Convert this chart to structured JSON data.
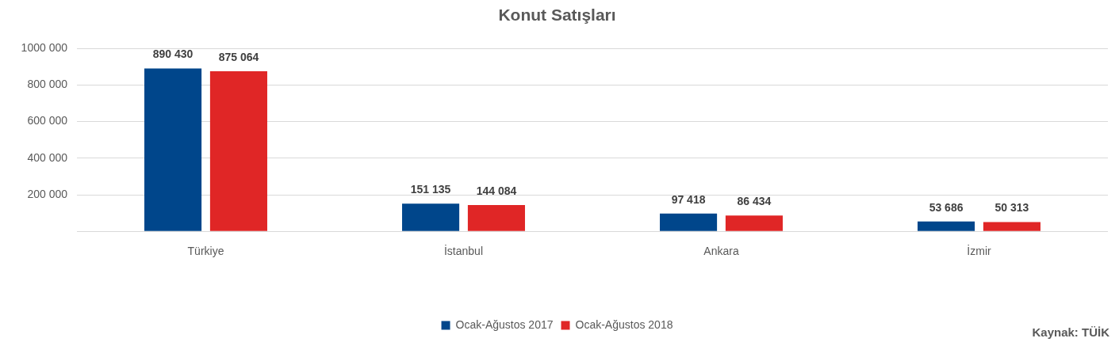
{
  "chart_data": {
    "type": "bar",
    "title": "Konut Satışları",
    "categories": [
      "Türkiye",
      "İstanbul",
      "Ankara",
      "İzmir"
    ],
    "series": [
      {
        "name": "Ocak-Ağustos 2017",
        "color": "#00468b",
        "values": [
          890430,
          151135,
          97418,
          53686
        ],
        "value_labels": [
          "890 430",
          "151 135",
          "97 418",
          "53 686"
        ]
      },
      {
        "name": "Ocak-Ağustos 2018",
        "color": "#e02626",
        "values": [
          875064,
          144084,
          86434,
          50313
        ],
        "value_labels": [
          "875 064",
          "144 084",
          "86 434",
          "50 313"
        ]
      }
    ],
    "ylim": [
      0,
      1000000
    ],
    "yticks": [
      {
        "value": 0,
        "label": null
      },
      {
        "value": 200000,
        "label": "200 000"
      },
      {
        "value": 400000,
        "label": "400 000"
      },
      {
        "value": 600000,
        "label": "600 000"
      },
      {
        "value": 800000,
        "label": "800 000"
      },
      {
        "value": 1000000,
        "label": "1000 000"
      }
    ],
    "grid": "y",
    "legend": "bottom",
    "annotations": [
      "Kaynak: TÜİK"
    ]
  }
}
